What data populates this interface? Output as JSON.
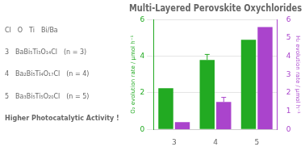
{
  "chart_data": {
    "type": "bar",
    "title": "Multi-Layered Perovskite Oxychlorides",
    "categories": [
      "3",
      "4",
      "5"
    ],
    "series": [
      {
        "color": "#22aa22",
        "values": [
          2.25,
          3.8,
          4.9
        ],
        "errors_plus": [
          null,
          0.3,
          null
        ]
      },
      {
        "color": "#aa44cc",
        "values": [
          0.4,
          1.5,
          5.6
        ],
        "errors_plus": [
          null,
          0.25,
          null
        ],
        "axis": "y2"
      }
    ],
    "ylabel": "O₂ evolution rate / μmol h⁻¹",
    "y2label": "H₂ evolution rate / μmol h⁻¹",
    "ylim": [
      0,
      6
    ],
    "yticks": [
      0,
      2,
      4,
      6
    ],
    "y2lim": [
      0,
      6
    ],
    "y2ticks": [
      0,
      1,
      2,
      3,
      4,
      5,
      6
    ],
    "grid": true,
    "annotations": [
      [
        "Cl",
        "O",
        "Ti",
        "Bi/Ba"
      ],
      [
        "3",
        "BaBi₅Ti₃O₁₄Cl",
        "(n = 3)"
      ],
      [
        "4",
        "Ba₂Bi₅Ti₄O₁₇Cl",
        "(n = 4)"
      ],
      [
        "5",
        "Ba₃Bi₅Ti₅O₂₀Cl",
        "(n = 5)"
      ],
      [
        "Higher Photocatalytic Activity !"
      ]
    ]
  }
}
